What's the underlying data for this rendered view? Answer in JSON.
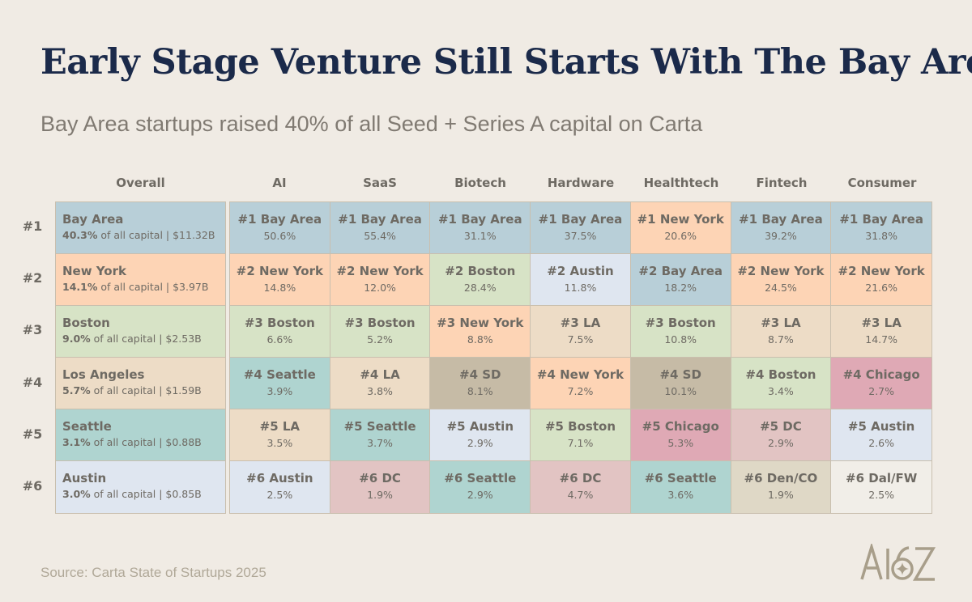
{
  "title": "Early Stage Venture Still Starts With The Bay Area",
  "subtitle": "Bay Area startups raised 40% of all Seed + Series A capital on Carta",
  "source": "Source: Carta State of Startups 2025",
  "logo": "A16Z",
  "colors": {
    "Bay Area": "#b8cfd8",
    "New York": "#fdd4b5",
    "Boston": "#d7e3c6",
    "LA": "#eddcc6",
    "Seattle": "#afd4d0",
    "Austin": "#dfe6f0",
    "SD": "#c6bba6",
    "Chicago": "#dfa9b5",
    "DC": "#e2c4c3",
    "Den/CO": "#dfd8c6",
    "Dal/FW": "#f1eee8"
  },
  "columns": [
    "Overall",
    "AI",
    "SaaS",
    "Biotech",
    "Hardware",
    "Healthtech",
    "Fintech",
    "Consumer"
  ],
  "ranks": [
    "#1",
    "#2",
    "#3",
    "#4",
    "#5",
    "#6"
  ],
  "overall": [
    {
      "name": "Bay Area",
      "key": "Bay Area",
      "pct": "40.3%",
      "rest": " of all capital | $11.32B"
    },
    {
      "name": "New York",
      "key": "New York",
      "pct": "14.1%",
      "rest": " of all capital | $3.97B"
    },
    {
      "name": "Boston",
      "key": "Boston",
      "pct": "9.0%",
      "rest": " of all capital | $2.53B"
    },
    {
      "name": "Los Angeles",
      "key": "LA",
      "pct": "5.7%",
      "rest": " of all capital | $1.59B"
    },
    {
      "name": "Seattle",
      "key": "Seattle",
      "pct": "3.1%",
      "rest": " of all capital | $0.88B"
    },
    {
      "name": "Austin",
      "key": "Austin",
      "pct": "3.0%",
      "rest": " of all capital | $0.85B"
    }
  ],
  "rows": [
    [
      {
        "label": "#1 Bay Area",
        "key": "Bay Area",
        "value": "50.6%"
      },
      {
        "label": "#1 Bay Area",
        "key": "Bay Area",
        "value": "55.4%"
      },
      {
        "label": "#1 Bay Area",
        "key": "Bay Area",
        "value": "31.1%"
      },
      {
        "label": "#1 Bay Area",
        "key": "Bay Area",
        "value": "37.5%"
      },
      {
        "label": "#1 New York",
        "key": "New York",
        "value": "20.6%"
      },
      {
        "label": "#1 Bay Area",
        "key": "Bay Area",
        "value": "39.2%"
      },
      {
        "label": "#1 Bay Area",
        "key": "Bay Area",
        "value": "31.8%"
      }
    ],
    [
      {
        "label": "#2 New York",
        "key": "New York",
        "value": "14.8%"
      },
      {
        "label": "#2 New York",
        "key": "New York",
        "value": "12.0%"
      },
      {
        "label": "#2 Boston",
        "key": "Boston",
        "value": "28.4%"
      },
      {
        "label": "#2 Austin",
        "key": "Austin",
        "value": "11.8%"
      },
      {
        "label": "#2 Bay Area",
        "key": "Bay Area",
        "value": "18.2%"
      },
      {
        "label": "#2 New York",
        "key": "New York",
        "value": "24.5%"
      },
      {
        "label": "#2 New York",
        "key": "New York",
        "value": "21.6%"
      }
    ],
    [
      {
        "label": "#3 Boston",
        "key": "Boston",
        "value": "6.6%"
      },
      {
        "label": "#3 Boston",
        "key": "Boston",
        "value": "5.2%"
      },
      {
        "label": "#3 New York",
        "key": "New York",
        "value": "8.8%"
      },
      {
        "label": "#3 LA",
        "key": "LA",
        "value": "7.5%"
      },
      {
        "label": "#3 Boston",
        "key": "Boston",
        "value": "10.8%"
      },
      {
        "label": "#3 LA",
        "key": "LA",
        "value": "8.7%"
      },
      {
        "label": "#3 LA",
        "key": "LA",
        "value": "14.7%"
      }
    ],
    [
      {
        "label": "#4 Seattle",
        "key": "Seattle",
        "value": "3.9%"
      },
      {
        "label": "#4 LA",
        "key": "LA",
        "value": "3.8%"
      },
      {
        "label": "#4 SD",
        "key": "SD",
        "value": "8.1%"
      },
      {
        "label": "#4 New York",
        "key": "New York",
        "value": "7.2%"
      },
      {
        "label": "#4 SD",
        "key": "SD",
        "value": "10.1%"
      },
      {
        "label": "#4 Boston",
        "key": "Boston",
        "value": "3.4%"
      },
      {
        "label": "#4 Chicago",
        "key": "Chicago",
        "value": "2.7%"
      }
    ],
    [
      {
        "label": "#5 LA",
        "key": "LA",
        "value": "3.5%"
      },
      {
        "label": "#5 Seattle",
        "key": "Seattle",
        "value": "3.7%"
      },
      {
        "label": "#5 Austin",
        "key": "Austin",
        "value": "2.9%"
      },
      {
        "label": "#5 Boston",
        "key": "Boston",
        "value": "7.1%"
      },
      {
        "label": "#5 Chicago",
        "key": "Chicago",
        "value": "5.3%"
      },
      {
        "label": "#5 DC",
        "key": "DC",
        "value": "2.9%"
      },
      {
        "label": "#5 Austin",
        "key": "Austin",
        "value": "2.6%"
      }
    ],
    [
      {
        "label": "#6 Austin",
        "key": "Austin",
        "value": "2.5%"
      },
      {
        "label": "#6 DC",
        "key": "DC",
        "value": "1.9%"
      },
      {
        "label": "#6 Seattle",
        "key": "Seattle",
        "value": "2.9%"
      },
      {
        "label": "#6 DC",
        "key": "DC",
        "value": "4.7%"
      },
      {
        "label": "#6 Seattle",
        "key": "Seattle",
        "value": "3.6%"
      },
      {
        "label": "#6 Den/CO",
        "key": "Den/CO",
        "value": "1.9%"
      },
      {
        "label": "#6 Dal/FW",
        "key": "Dal/FW",
        "value": "2.5%"
      }
    ]
  ]
}
